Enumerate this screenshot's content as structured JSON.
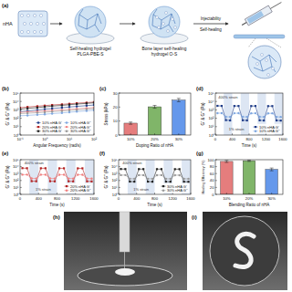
{
  "schematic": {
    "panel": "(a)",
    "nha": "nHA",
    "first": [
      "Self-healing hydrogel",
      "PLGA-PBE-S"
    ],
    "second": [
      "Bone layer self-healing",
      "hydrogel O-S"
    ],
    "inject": "Injectability",
    "heal": "Self-healing"
  },
  "chart_data": [
    {
      "panel": "(b)",
      "type": "line",
      "x_label": "Angular Frequency (rad/s)",
      "y_label": "G' & G'' (Pa)",
      "log": true,
      "grid": false,
      "legend": "lower-right",
      "x": [
        0.1,
        0.2,
        0.5,
        1,
        2,
        5,
        10,
        20,
        50,
        100
      ],
      "xlim": [
        0.1,
        100
      ],
      "xticks": [
        {
          "value": 0.1,
          "label": "10⁻¹"
        },
        {
          "value": 1,
          "label": "10⁰"
        },
        {
          "value": 10,
          "label": "10¹"
        },
        {
          "value": 100,
          "label": "10²"
        }
      ],
      "ylim": [
        1,
        100000
      ],
      "yticks": [
        {
          "value": 1,
          "label": "10⁰"
        },
        {
          "value": 10,
          "label": "10¹"
        },
        {
          "value": 100,
          "label": "10²"
        },
        {
          "value": 1000,
          "label": "10³"
        },
        {
          "value": 10000,
          "label": "10⁴"
        },
        {
          "value": 100000,
          "label": "10⁵"
        }
      ],
      "series": [
        {
          "name": "10% nHA G'",
          "color": "#1f3c88",
          "marker": "square",
          "line_style": "solid",
          "values": [
            600,
            750,
            950,
            1200,
            1450,
            1800,
            2200,
            2600,
            3200,
            3800
          ]
        },
        {
          "name": "10% nHA G''",
          "color": "#7fa7e0",
          "marker": "circle",
          "line_style": "solid",
          "values": [
            200,
            220,
            260,
            300,
            360,
            430,
            520,
            620,
            760,
            900
          ]
        },
        {
          "name": "20% nHA G'",
          "color": "#b22222",
          "marker": "square",
          "line_style": "solid",
          "values": [
            1800,
            2200,
            2700,
            3200,
            3800,
            4500,
            5300,
            6200,
            7300,
            8500
          ]
        },
        {
          "name": "20% nHA G''",
          "color": "#f08080",
          "marker": "circle",
          "line_style": "solid",
          "values": [
            500,
            560,
            640,
            730,
            850,
            980,
            1150,
            1350,
            1600,
            1900
          ]
        },
        {
          "name": "30% nHA G'",
          "color": "#222222",
          "marker": "square",
          "line_style": "solid",
          "values": [
            1200,
            1500,
            1850,
            2300,
            2800,
            3400,
            4100,
            4900,
            5900,
            7000
          ]
        },
        {
          "name": "30% nHA G''",
          "color": "#999999",
          "marker": "circle",
          "line_style": "solid",
          "values": [
            350,
            400,
            460,
            530,
            620,
            730,
            860,
            1000,
            1200,
            1400
          ]
        }
      ]
    },
    {
      "panel": "(c)",
      "type": "bar",
      "x_label": "Doping Ratio of nHA",
      "y_label": "Stress (kPa)",
      "grid": false,
      "categories": [
        "10%",
        "20%",
        "30%"
      ],
      "values": [
        8.5,
        20.2,
        25.0
      ],
      "errors": [
        0.8,
        1.0,
        1.2
      ],
      "colors": [
        "#e06666",
        "#6aa84f",
        "#4a86e8"
      ],
      "ylim": [
        0,
        30
      ],
      "yticks": [
        0,
        10,
        20,
        30
      ]
    },
    {
      "panel": "(d)",
      "type": "line",
      "x_label": "Time (s)",
      "y_label": "G' & G'' (Pa)",
      "log": "y",
      "grid": false,
      "legend": "lower-right",
      "x": [
        50,
        150,
        250,
        350,
        450,
        550,
        650,
        750,
        850,
        950,
        1050,
        1150,
        1250,
        1350,
        1450,
        1550
      ],
      "xlim": [
        0,
        1600
      ],
      "xticks": [
        0,
        400,
        800,
        1200,
        1600
      ],
      "ylim": [
        1,
        100000
      ],
      "yticks": [
        {
          "value": 1,
          "label": "10⁰"
        },
        {
          "value": 10,
          "label": "10¹"
        },
        {
          "value": 100,
          "label": "10²"
        },
        {
          "value": 1000,
          "label": "10³"
        },
        {
          "value": 10000,
          "label": "10⁴"
        },
        {
          "value": 100000,
          "label": "10⁵"
        }
      ],
      "bands": [
        [
          200,
          400
        ],
        [
          600,
          800
        ],
        [
          1000,
          1200
        ],
        [
          1400,
          1600
        ]
      ],
      "annotations": [
        {
          "text": "400% strain",
          "x": 300,
          "y": 30000
        },
        {
          "text": "1% strain",
          "x": 500,
          "y": 5
        }
      ],
      "series": [
        {
          "name": "10% nHA G'",
          "color": "#1f3c88",
          "marker": "square",
          "line_style": "solid",
          "values": [
            3000,
            2950,
            60,
            55,
            2900,
            2900,
            58,
            55,
            2850,
            2880,
            57,
            54,
            2800,
            2820,
            55,
            53
          ]
        },
        {
          "name": "10% nHA G''",
          "color": "#7fa7e0",
          "marker": "circle",
          "line_style": "solid",
          "values": [
            400,
            410,
            150,
            145,
            395,
            400,
            148,
            146,
            390,
            395,
            147,
            145,
            385,
            390,
            146,
            144
          ]
        }
      ]
    },
    {
      "panel": "(e)",
      "type": "line",
      "x_label": "Time (s)",
      "y_label": "G' & G'' (Pa)",
      "log": "y",
      "grid": false,
      "legend": "lower-right",
      "x": [
        50,
        150,
        250,
        350,
        450,
        550,
        650,
        750,
        850,
        950,
        1050,
        1150,
        1250,
        1350,
        1450,
        1550
      ],
      "xlim": [
        0,
        1600
      ],
      "xticks": [
        0,
        400,
        800,
        1200,
        1600
      ],
      "ylim": [
        1,
        100000
      ],
      "yticks": [
        {
          "value": 1,
          "label": "10⁰"
        },
        {
          "value": 10,
          "label": "10¹"
        },
        {
          "value": 100,
          "label": "10²"
        },
        {
          "value": 1000,
          "label": "10³"
        },
        {
          "value": 10000,
          "label": "10⁴"
        },
        {
          "value": 100000,
          "label": "10⁵"
        }
      ],
      "bands": [
        [
          200,
          400
        ],
        [
          600,
          800
        ],
        [
          1000,
          1200
        ],
        [
          1400,
          1600
        ]
      ],
      "annotations": [
        {
          "text": "400% strain",
          "x": 300,
          "y": 30000
        },
        {
          "text": "1% strain",
          "x": 500,
          "y": 5
        }
      ],
      "series": [
        {
          "name": "20% nHA G'",
          "color": "#b22222",
          "marker": "square",
          "line_style": "solid",
          "values": [
            6000,
            5900,
            80,
            78,
            5800,
            5850,
            79,
            76,
            5700,
            5750,
            77,
            75,
            5650,
            5700,
            76,
            74
          ]
        },
        {
          "name": "20% nHA G''",
          "color": "#f08080",
          "marker": "circle",
          "line_style": "solid",
          "values": [
            700,
            710,
            200,
            195,
            690,
            700,
            198,
            194,
            680,
            690,
            196,
            192,
            675,
            685,
            194,
            190
          ]
        }
      ]
    },
    {
      "panel": "(f)",
      "type": "line",
      "x_label": "Time (s)",
      "y_label": "G' & G'' (Pa)",
      "log": "y",
      "grid": false,
      "legend": "lower-right",
      "x": [
        50,
        150,
        250,
        350,
        450,
        550,
        650,
        750,
        850,
        950,
        1050,
        1150,
        1250,
        1350,
        1450,
        1550
      ],
      "xlim": [
        0,
        1600
      ],
      "xticks": [
        0,
        400,
        800,
        1200,
        1600
      ],
      "ylim": [
        1,
        100000
      ],
      "yticks": [
        {
          "value": 1,
          "label": "10⁰"
        },
        {
          "value": 10,
          "label": "10¹"
        },
        {
          "value": 100,
          "label": "10²"
        },
        {
          "value": 1000,
          "label": "10³"
        },
        {
          "value": 10000,
          "label": "10⁴"
        },
        {
          "value": 100000,
          "label": "10⁵"
        }
      ],
      "bands": [
        [
          200,
          400
        ],
        [
          600,
          800
        ],
        [
          1000,
          1200
        ],
        [
          1400,
          1600
        ]
      ],
      "annotations": [
        {
          "text": "400% strain",
          "x": 300,
          "y": 30000
        },
        {
          "text": "1% strain",
          "x": 500,
          "y": 5
        }
      ],
      "series": [
        {
          "name": "30% nHA G'",
          "color": "#222222",
          "marker": "square",
          "line_style": "solid",
          "values": [
            4500,
            4450,
            70,
            68,
            4400,
            4420,
            69,
            67,
            4350,
            4380,
            68,
            66,
            4300,
            4330,
            67,
            65
          ]
        },
        {
          "name": "30% nHA G''",
          "color": "#999999",
          "marker": "circle",
          "line_style": "solid",
          "values": [
            600,
            610,
            180,
            176,
            595,
            600,
            178,
            175,
            590,
            595,
            177,
            174,
            585,
            590,
            176,
            172
          ]
        }
      ]
    },
    {
      "panel": "(g)",
      "type": "bar",
      "x_label": "Blending Ratio of nHA",
      "y_label": "Healing Efficiency (%)",
      "grid": false,
      "categories": [
        "10%",
        "20%",
        "30%"
      ],
      "values": [
        95,
        97,
        72
      ],
      "errors": [
        3,
        2,
        4
      ],
      "colors": [
        "#e06666",
        "#6aa84f",
        "#4a86e8"
      ],
      "ylim": [
        0,
        100
      ],
      "yticks": [
        0,
        20,
        40,
        60,
        80,
        100
      ]
    }
  ],
  "photos": [
    {
      "panel": "(h)"
    },
    {
      "panel": "(i)"
    }
  ]
}
